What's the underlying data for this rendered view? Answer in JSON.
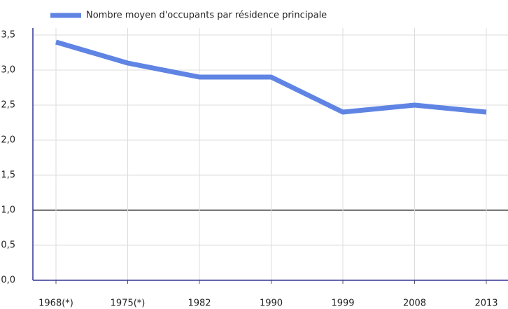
{
  "chart_data": {
    "type": "line",
    "categories": [
      "1968(*)",
      "1975(*)",
      "1982",
      "1990",
      "1999",
      "2008",
      "2013"
    ],
    "series": [
      {
        "name": "Nombre moyen d'occupants par résidence principale",
        "color": "#5f84e3",
        "values": [
          3.4,
          3.1,
          2.9,
          2.9,
          2.4,
          2.5,
          2.4
        ]
      }
    ],
    "ylim": [
      0,
      3.6
    ],
    "yticks": [
      {
        "value": 0,
        "label": "0,0"
      },
      {
        "value": 0.5,
        "label": "0,5"
      },
      {
        "value": 1,
        "label": "1,0"
      },
      {
        "value": 1.5,
        "label": "1,5"
      },
      {
        "value": 2,
        "label": "2,0"
      },
      {
        "value": 2.5,
        "label": "2,5"
      },
      {
        "value": 3,
        "label": "3,0"
      },
      {
        "value": 3.5,
        "label": "3,5"
      }
    ],
    "grid": true,
    "reference_line": 1,
    "legend": "top"
  }
}
